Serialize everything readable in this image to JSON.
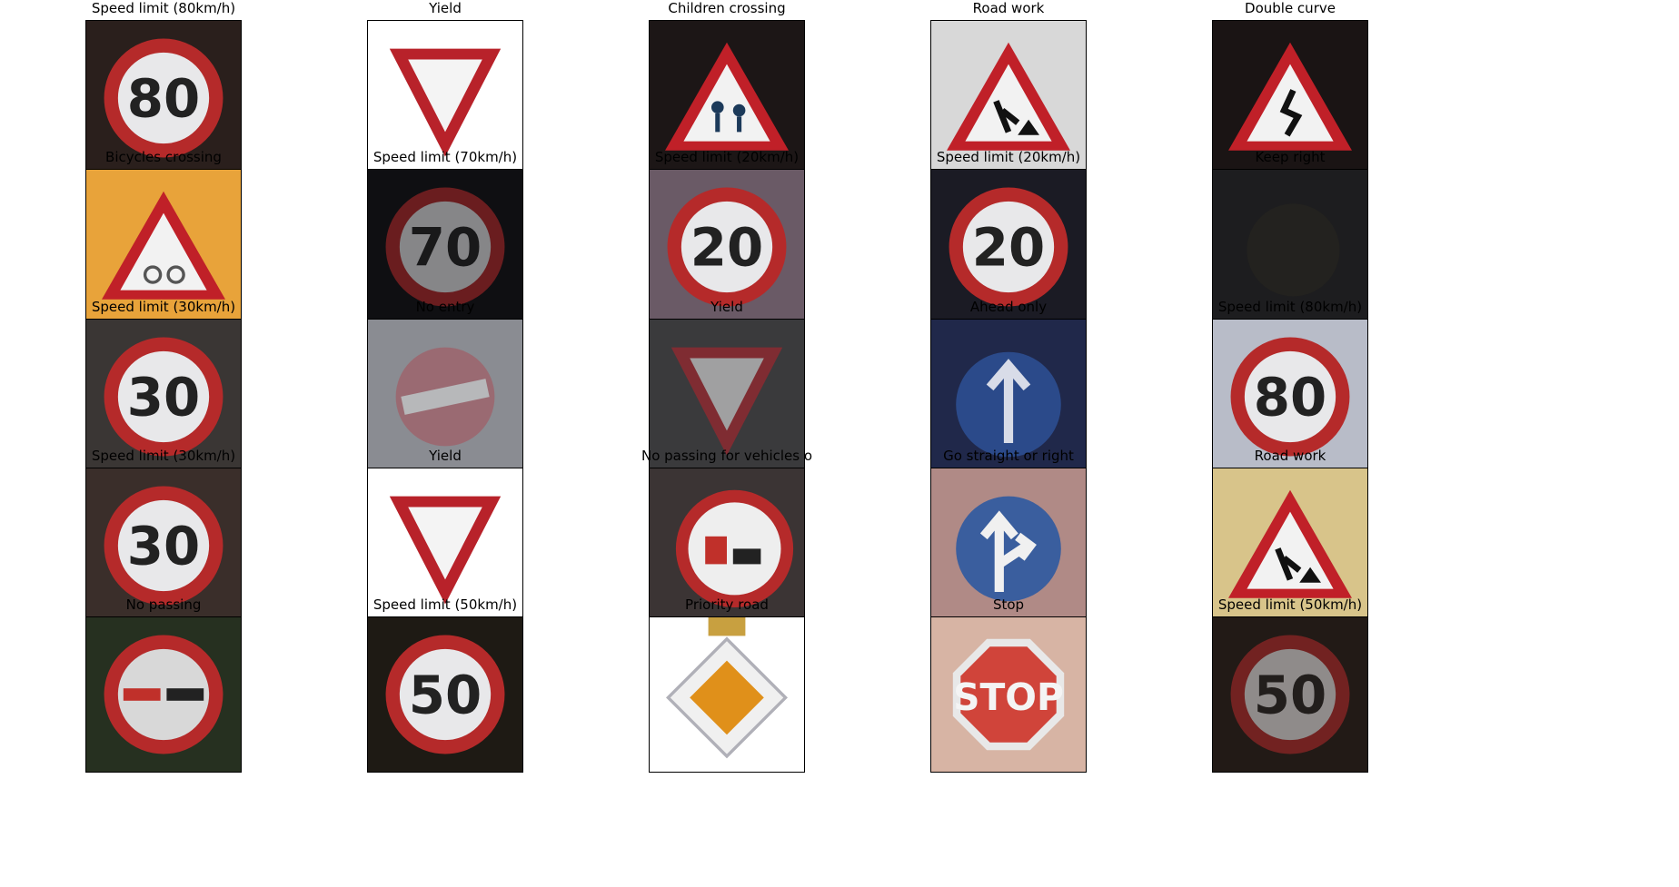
{
  "grid": {
    "rows": 5,
    "columns": 5,
    "cells": [
      {
        "label": "Speed limit (80km/h)",
        "sign": "speed",
        "text": "80",
        "bg": "#2a1f1c"
      },
      {
        "label": "Yield",
        "sign": "yield",
        "bg": "#ffffff"
      },
      {
        "label": "Children crossing",
        "sign": "warning",
        "symbol": "children",
        "bg": "#1c1616"
      },
      {
        "label": "Road work",
        "sign": "warning",
        "symbol": "roadwork",
        "bg": "#d8d8d8"
      },
      {
        "label": "Double curve",
        "sign": "warning",
        "symbol": "curve",
        "bg": "#1a1414"
      },
      {
        "label": "Bicycles crossing",
        "sign": "warning",
        "symbol": "bicycle",
        "bg": "#e8a33a"
      },
      {
        "label": "Speed limit (70km/h)",
        "sign": "speed",
        "text": "70",
        "bg": "#0f0f12",
        "dim": true
      },
      {
        "label": "Speed limit (20km/h)",
        "sign": "speed",
        "text": "20",
        "bg": "#6a5a66"
      },
      {
        "label": "Speed limit (20km/h)",
        "sign": "speed",
        "text": "20",
        "bg": "#1b1b24"
      },
      {
        "label": "Keep right",
        "sign": "dark",
        "bg": "#1d1d1f"
      },
      {
        "label": "Speed limit (30km/h)",
        "sign": "speed",
        "text": "30",
        "bg": "#3a3634"
      },
      {
        "label": "No entry",
        "sign": "noentry",
        "bg": "#8a8c92",
        "dim": true
      },
      {
        "label": "Yield",
        "sign": "yield",
        "bg": "#3a3a3c",
        "dim": true
      },
      {
        "label": "Ahead only",
        "sign": "ahead",
        "bg": "#20284a"
      },
      {
        "label": "Speed limit (80km/h)",
        "sign": "speed",
        "text": "80",
        "bg": "#b8bcc8"
      },
      {
        "label": "Speed limit (30km/h)",
        "sign": "speed",
        "text": "30",
        "bg": "#3a2e2a"
      },
      {
        "label": "Yield",
        "sign": "yield",
        "bg": "#ffffff"
      },
      {
        "label": "No passing for vehicles o",
        "sign": "notruck",
        "bg": "#3b3434"
      },
      {
        "label": "Go straight or right",
        "sign": "straightright",
        "bg": "#b08a86"
      },
      {
        "label": "Road work",
        "sign": "warning",
        "symbol": "roadwork",
        "bg": "#d8c48a"
      },
      {
        "label": "No passing",
        "sign": "nopassing",
        "bg": "#263020"
      },
      {
        "label": "Speed limit (50km/h)",
        "sign": "speed",
        "text": "50",
        "bg": "#1e1a14"
      },
      {
        "label": "Priority road",
        "sign": "priority",
        "bg": "#ffffff"
      },
      {
        "label": "Stop",
        "sign": "stop",
        "text": "STOP",
        "bg": "#d7b4a4"
      },
      {
        "label": "Speed limit (50km/h)",
        "sign": "speed",
        "text": "50",
        "bg": "#221a16",
        "dim": true
      }
    ]
  }
}
